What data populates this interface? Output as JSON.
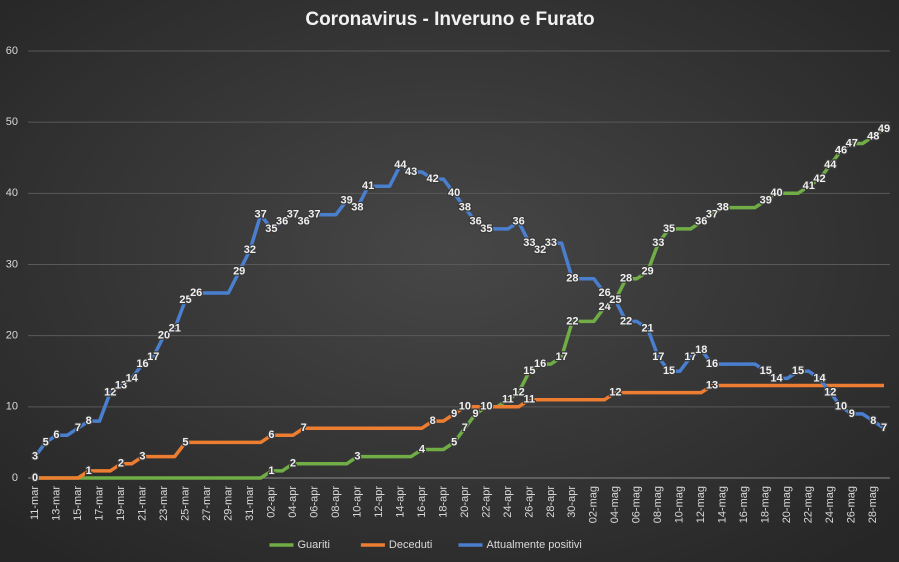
{
  "chart_data": {
    "type": "line",
    "title": "Coronavirus - Inveruno e Furato",
    "categories": [
      "11-mar",
      null,
      "13-mar",
      null,
      "15-mar",
      null,
      "17-mar",
      null,
      "19-mar",
      null,
      "21-mar",
      null,
      "23-mar",
      null,
      "25-mar",
      null,
      "27-mar",
      null,
      "29-mar",
      null,
      "31-mar",
      null,
      "02-apr",
      null,
      "04-apr",
      null,
      "06-apr",
      null,
      "08-apr",
      null,
      "10-apr",
      null,
      "12-apr",
      null,
      "14-apr",
      null,
      "16-apr",
      null,
      "18-apr",
      null,
      "20-apr",
      null,
      "22-apr",
      null,
      "24-apr",
      null,
      "26-apr",
      null,
      "28-apr",
      null,
      "30-apr",
      null,
      "02-mag",
      null,
      "04-mag",
      null,
      "06-mag",
      null,
      "08-mag",
      null,
      "10-mag",
      null,
      "12-mag",
      null,
      "14-mag",
      null,
      "16-mag",
      null,
      "18-mag",
      null,
      "20-mag",
      null,
      "22-mag",
      null,
      "24-mag",
      null,
      "26-mag",
      null,
      "28-mag",
      null
    ],
    "series": [
      {
        "name": "Guariti",
        "color": "#70ad47",
        "values": [
          0,
          0,
          0,
          0,
          0,
          0,
          0,
          0,
          0,
          0,
          0,
          0,
          0,
          0,
          0,
          0,
          0,
          0,
          0,
          0,
          0,
          0,
          1,
          1,
          2,
          2,
          2,
          2,
          2,
          2,
          3,
          3,
          3,
          3,
          3,
          3,
          4,
          4,
          4,
          5,
          7,
          9,
          10,
          10,
          11,
          12,
          15,
          16,
          16,
          17,
          22,
          22,
          22,
          24,
          25,
          28,
          28,
          29,
          33,
          35,
          35,
          35,
          36,
          37,
          38,
          38,
          38,
          38,
          39,
          40,
          40,
          40,
          41,
          42,
          44,
          46,
          47,
          47,
          48,
          49
        ]
      },
      {
        "name": "Deceduti",
        "color": "#ed7d31",
        "values": [
          0,
          0,
          0,
          0,
          0,
          1,
          1,
          1,
          2,
          2,
          3,
          3,
          3,
          3,
          5,
          5,
          5,
          5,
          5,
          5,
          5,
          5,
          6,
          6,
          6,
          7,
          7,
          7,
          7,
          7,
          7,
          7,
          7,
          7,
          7,
          7,
          7,
          8,
          8,
          9,
          10,
          10,
          10,
          10,
          10,
          10,
          11,
          11,
          11,
          11,
          11,
          11,
          11,
          11,
          12,
          12,
          12,
          12,
          12,
          12,
          12,
          12,
          12,
          13,
          13,
          13,
          13,
          13,
          13,
          13,
          13,
          13,
          13,
          13,
          13,
          13,
          13,
          13,
          13,
          13
        ]
      },
      {
        "name": "Attualmente positivi",
        "color": "#4a7fd0",
        "values": [
          3,
          5,
          6,
          6,
          7,
          8,
          8,
          12,
          13,
          14,
          16,
          17,
          20,
          21,
          25,
          26,
          26,
          26,
          26,
          29,
          32,
          37,
          35,
          36,
          37,
          36,
          37,
          37,
          37,
          39,
          38,
          41,
          41,
          41,
          44,
          43,
          43,
          42,
          42,
          40,
          38,
          36,
          35,
          35,
          35,
          36,
          33,
          32,
          33,
          33,
          28,
          28,
          28,
          26,
          25,
          22,
          22,
          21,
          17,
          15,
          15,
          17,
          18,
          16,
          16,
          16,
          16,
          16,
          15,
          14,
          14,
          15,
          15,
          14,
          12,
          10,
          9,
          9,
          8,
          7
        ]
      }
    ],
    "ylim": [
      0,
      60
    ],
    "yticks": [
      0,
      10,
      20,
      30,
      40,
      50,
      60
    ],
    "grid": true,
    "legend": "bottom"
  }
}
